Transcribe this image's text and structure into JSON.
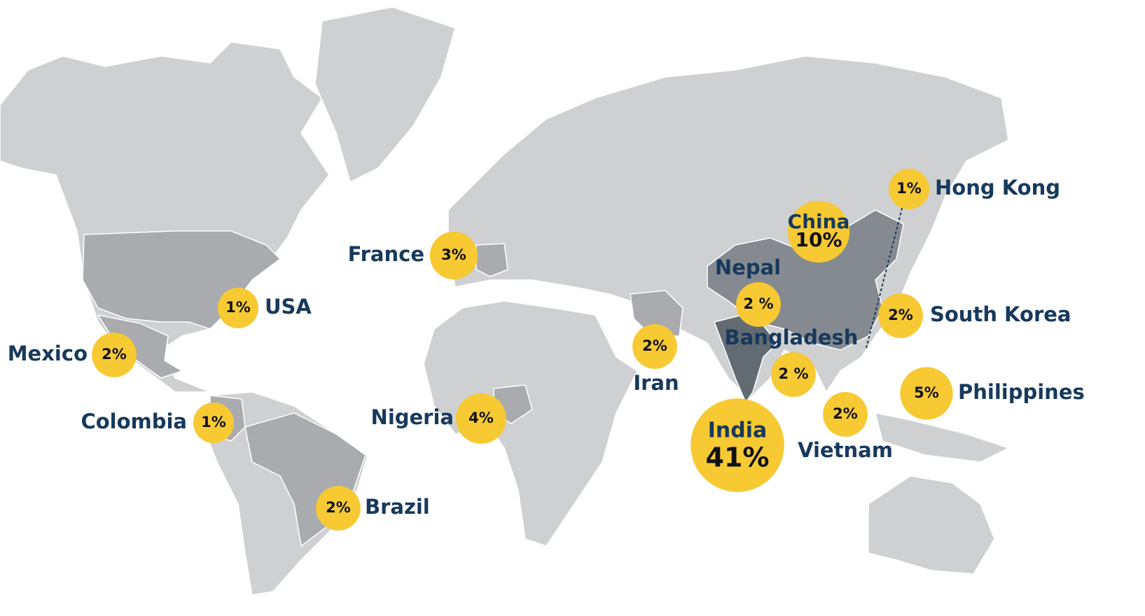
{
  "markers": [
    {
      "country": "USA",
      "value": 1,
      "label": "1%"
    },
    {
      "country": "Mexico",
      "value": 2,
      "label": "2%"
    },
    {
      "country": "Colombia",
      "value": 1,
      "label": "1%"
    },
    {
      "country": "Brazil",
      "value": 2,
      "label": "2%"
    },
    {
      "country": "France",
      "value": 3,
      "label": "3%"
    },
    {
      "country": "Nigeria",
      "value": 4,
      "label": "4%"
    },
    {
      "country": "Iran",
      "value": 2,
      "label": "2%"
    },
    {
      "country": "Nepal",
      "value": 2,
      "label": "2 %"
    },
    {
      "country": "Bangladesh",
      "value": 2,
      "label": "2 %"
    },
    {
      "country": "India",
      "value": 41,
      "label": "41%"
    },
    {
      "country": "China",
      "value": 10,
      "label": "10%"
    },
    {
      "country": "Vietnam",
      "value": 2,
      "label": "2%"
    },
    {
      "country": "Hong Kong",
      "value": 1,
      "label": "1%"
    },
    {
      "country": "South Korea",
      "value": 2,
      "label": "2%"
    },
    {
      "country": "Philippines",
      "value": 5,
      "label": "5%"
    }
  ]
}
